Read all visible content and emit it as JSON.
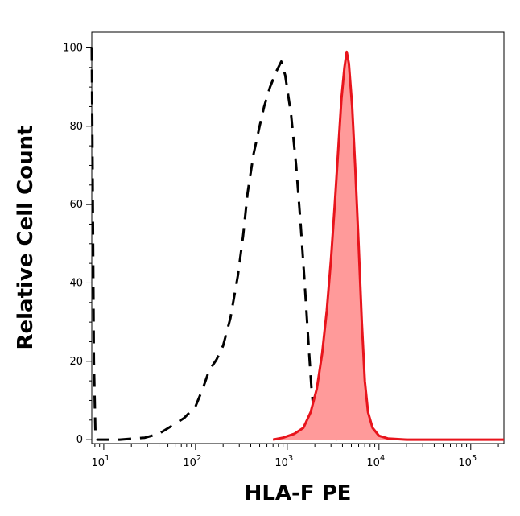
{
  "chart_data": {
    "type": "area",
    "xlabel": "HLA-F PE",
    "ylabel": "Relative Cell Count",
    "xscale": "log",
    "xlim": [
      7.4,
      230000
    ],
    "ylim": [
      -1,
      104
    ],
    "grid": false,
    "x_ticks": [
      {
        "value": 10,
        "base": "10",
        "exp": "1"
      },
      {
        "value": 100,
        "base": "10",
        "exp": "2"
      },
      {
        "value": 1000,
        "base": "10",
        "exp": "3"
      },
      {
        "value": 10000,
        "base": "10",
        "exp": "4"
      },
      {
        "value": 100000,
        "base": "10",
        "exp": "5"
      }
    ],
    "y_ticks": [
      {
        "value": 0,
        "label": "0"
      },
      {
        "value": 20,
        "label": "20"
      },
      {
        "value": 40,
        "label": "40"
      },
      {
        "value": 60,
        "label": "60"
      },
      {
        "value": 80,
        "label": "80"
      },
      {
        "value": 100,
        "label": "100"
      }
    ],
    "series": [
      {
        "style": "dashed",
        "color": "#000000",
        "points": [
          [
            7.4,
            100
          ],
          [
            7.6,
            60
          ],
          [
            7.8,
            20
          ],
          [
            8.1,
            2
          ],
          [
            8.5,
            0
          ],
          [
            15,
            0
          ],
          [
            28,
            0.5
          ],
          [
            40,
            1.5
          ],
          [
            55,
            3.5
          ],
          [
            75,
            5.5
          ],
          [
            100,
            8.5
          ],
          [
            120,
            13
          ],
          [
            140,
            17.5
          ],
          [
            170,
            20.5
          ],
          [
            200,
            24
          ],
          [
            240,
            31
          ],
          [
            290,
            42
          ],
          [
            330,
            52
          ],
          [
            370,
            63
          ],
          [
            430,
            73
          ],
          [
            500,
            80
          ],
          [
            560,
            85
          ],
          [
            650,
            90
          ],
          [
            760,
            94
          ],
          [
            860,
            96.5
          ],
          [
            950,
            93
          ],
          [
            1100,
            83
          ],
          [
            1250,
            70
          ],
          [
            1400,
            55
          ],
          [
            1550,
            40
          ],
          [
            1700,
            25
          ],
          [
            1850,
            12
          ],
          [
            2000,
            5
          ],
          [
            2300,
            1.5
          ],
          [
            2800,
            0.3
          ],
          [
            4000,
            0
          ]
        ]
      },
      {
        "style": "filled",
        "color": "#e8141c",
        "fill": "#ff9a9a",
        "points": [
          [
            700,
            0
          ],
          [
            900,
            0.5
          ],
          [
            1200,
            1.5
          ],
          [
            1500,
            3
          ],
          [
            1800,
            7
          ],
          [
            2100,
            13
          ],
          [
            2400,
            22
          ],
          [
            2700,
            33
          ],
          [
            3000,
            46
          ],
          [
            3300,
            60
          ],
          [
            3600,
            74
          ],
          [
            3900,
            87
          ],
          [
            4200,
            95
          ],
          [
            4450,
            99
          ],
          [
            4700,
            96
          ],
          [
            5100,
            85
          ],
          [
            5500,
            70
          ],
          [
            6000,
            50
          ],
          [
            6500,
            30
          ],
          [
            7000,
            15
          ],
          [
            7600,
            7
          ],
          [
            8500,
            3
          ],
          [
            10000,
            1
          ],
          [
            12500,
            0.3
          ],
          [
            20000,
            0
          ],
          [
            230000,
            0
          ]
        ]
      }
    ]
  }
}
